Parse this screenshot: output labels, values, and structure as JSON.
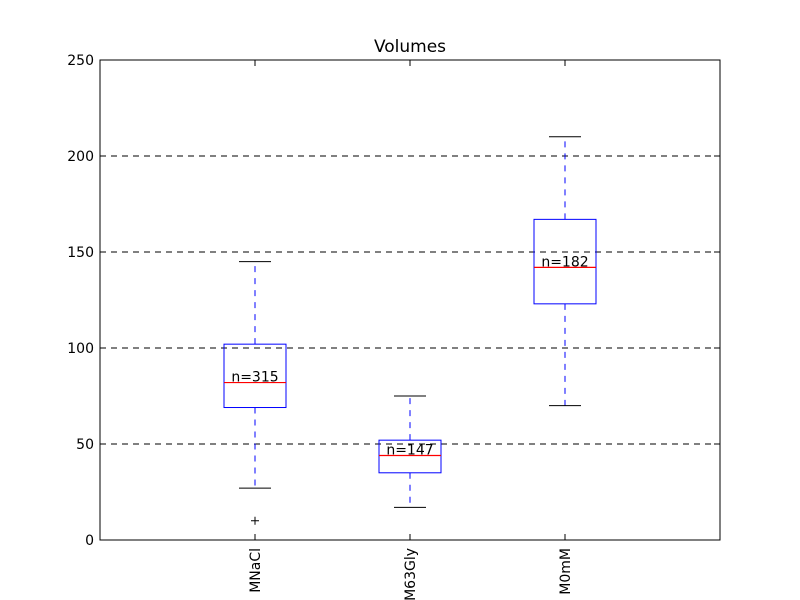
{
  "chart_data": {
    "type": "box",
    "title": "Volumes",
    "xlabel": "",
    "ylabel": "",
    "ylim": [
      0,
      250
    ],
    "yticks": [
      0,
      50,
      100,
      150,
      200,
      250
    ],
    "grid": "horizontal-dashed",
    "categories": [
      "MNaCl",
      "M63Gly",
      "M0mM"
    ],
    "boxes": [
      {
        "category": "MNaCl",
        "whisker_low": 27,
        "q1": 69,
        "median": 82,
        "q3": 102,
        "whisker_high": 145,
        "outliers": [
          10
        ],
        "n_label": "n=315"
      },
      {
        "category": "M63Gly",
        "whisker_low": 17,
        "q1": 35,
        "median": 44,
        "q3": 52,
        "whisker_high": 75,
        "outliers": [],
        "n_label": "n=147"
      },
      {
        "category": "M0mM",
        "whisker_low": 70,
        "q1": 123,
        "median": 142,
        "q3": 167,
        "whisker_high": 210,
        "outliers": [],
        "n_label": "n=182"
      }
    ],
    "colors": {
      "box": "#0000ff",
      "median": "#ff0000",
      "whisker": "#0000ff",
      "cap": "#000000",
      "grid": "#000000"
    }
  }
}
